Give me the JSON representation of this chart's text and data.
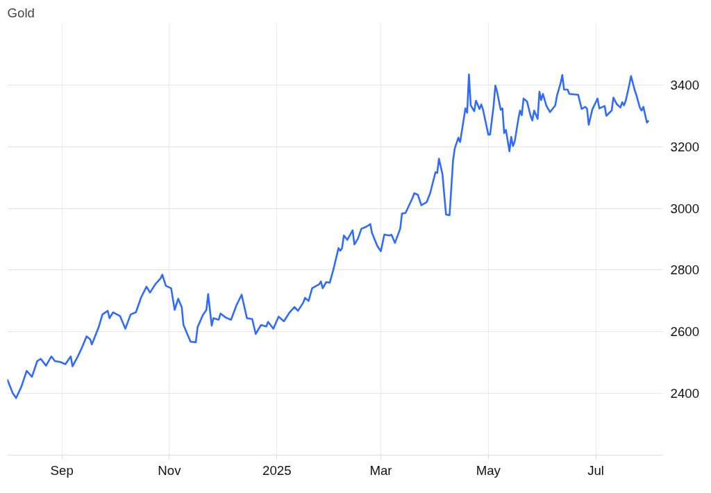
{
  "chart_data": {
    "type": "line",
    "title": "Gold",
    "x": [
      "2024-08-01",
      "2024-08-04",
      "2024-08-06",
      "2024-08-09",
      "2024-08-12",
      "2024-08-15",
      "2024-08-18",
      "2024-08-20",
      "2024-08-23",
      "2024-08-26",
      "2024-08-28",
      "2024-08-31",
      "2024-09-03",
      "2024-09-06",
      "2024-09-07",
      "2024-09-10",
      "2024-09-12",
      "2024-09-15",
      "2024-09-17",
      "2024-09-18",
      "2024-09-22",
      "2024-09-24",
      "2024-09-27",
      "2024-09-28",
      "2024-09-30",
      "2024-10-04",
      "2024-10-07",
      "2024-10-10",
      "2024-10-13",
      "2024-10-16",
      "2024-10-19",
      "2024-10-21",
      "2024-10-24",
      "2024-10-27",
      "2024-10-28",
      "2024-10-30",
      "2024-11-02",
      "2024-11-04",
      "2024-11-06",
      "2024-11-08",
      "2024-11-09",
      "2024-11-13",
      "2024-11-16",
      "2024-11-17",
      "2024-11-20",
      "2024-11-22",
      "2024-11-23",
      "2024-11-25",
      "2024-11-26",
      "2024-11-29",
      "2024-11-30",
      "2024-12-03",
      "2024-12-06",
      "2024-12-09",
      "2024-12-12",
      "2024-12-15",
      "2024-12-18",
      "2024-12-20",
      "2024-12-23",
      "2024-12-26",
      "2024-12-27",
      "2024-12-30",
      "2025-01-02",
      "2025-01-05",
      "2025-01-08",
      "2025-01-11",
      "2025-01-13",
      "2025-01-16",
      "2025-01-17",
      "2025-01-19",
      "2025-01-21",
      "2025-01-25",
      "2025-01-26",
      "2025-01-27",
      "2025-01-29",
      "2025-01-31",
      "2025-02-02",
      "2025-02-05",
      "2025-02-06",
      "2025-02-07",
      "2025-02-08",
      "2025-02-10",
      "2025-02-13",
      "2025-02-14",
      "2025-02-16",
      "2025-02-18",
      "2025-02-21",
      "2025-02-23",
      "2025-02-24",
      "2025-02-27",
      "2025-03-01",
      "2025-03-03",
      "2025-03-06",
      "2025-03-07",
      "2025-03-09",
      "2025-03-12",
      "2025-03-13",
      "2025-03-15",
      "2025-03-19",
      "2025-03-20",
      "2025-03-22",
      "2025-03-24",
      "2025-03-27",
      "2025-03-29",
      "2025-04-01",
      "2025-04-02",
      "2025-04-03",
      "2025-04-05",
      "2025-04-06",
      "2025-04-07",
      "2025-04-09",
      "2025-04-11",
      "2025-04-12",
      "2025-04-14",
      "2025-04-15",
      "2025-04-16",
      "2025-04-18",
      "2025-04-19",
      "2025-04-20",
      "2025-04-21",
      "2025-04-23",
      "2025-04-24",
      "2025-04-26",
      "2025-04-27",
      "2025-04-28",
      "2025-05-01",
      "2025-05-02",
      "2025-05-04",
      "2025-05-05",
      "2025-05-06",
      "2025-05-08",
      "2025-05-09",
      "2025-05-10",
      "2025-05-11",
      "2025-05-13",
      "2025-05-14",
      "2025-05-15",
      "2025-05-16",
      "2025-05-18",
      "2025-05-19",
      "2025-05-20",
      "2025-05-21",
      "2025-05-23",
      "2025-05-25",
      "2025-05-26",
      "2025-05-27",
      "2025-05-29",
      "2025-05-30",
      "2025-05-31",
      "2025-06-01",
      "2025-06-03",
      "2025-06-05",
      "2025-06-08",
      "2025-06-09",
      "2025-06-11",
      "2025-06-12",
      "2025-06-13",
      "2025-06-15",
      "2025-06-16",
      "2025-06-21",
      "2025-06-23",
      "2025-06-25",
      "2025-06-26",
      "2025-06-27",
      "2025-06-29",
      "2025-07-02",
      "2025-07-03",
      "2025-07-06",
      "2025-07-07",
      "2025-07-10",
      "2025-07-11",
      "2025-07-13",
      "2025-07-15",
      "2025-07-16",
      "2025-07-17",
      "2025-07-18",
      "2025-07-20",
      "2025-07-21",
      "2025-07-23",
      "2025-07-24",
      "2025-07-26",
      "2025-07-27",
      "2025-07-28",
      "2025-07-30",
      "2025-07-31"
    ],
    "series": [
      {
        "color": "#2f6bff",
        "values": [
          2446,
          2402,
          2385,
          2422,
          2473,
          2454,
          2505,
          2512,
          2490,
          2520,
          2505,
          2502,
          2495,
          2520,
          2488,
          2520,
          2544,
          2585,
          2576,
          2559,
          2617,
          2656,
          2668,
          2644,
          2663,
          2651,
          2610,
          2656,
          2663,
          2712,
          2746,
          2727,
          2754,
          2773,
          2785,
          2749,
          2741,
          2671,
          2707,
          2680,
          2622,
          2568,
          2566,
          2615,
          2654,
          2671,
          2722,
          2620,
          2644,
          2639,
          2659,
          2646,
          2639,
          2685,
          2720,
          2644,
          2641,
          2593,
          2622,
          2617,
          2632,
          2610,
          2649,
          2634,
          2661,
          2680,
          2668,
          2695,
          2710,
          2700,
          2741,
          2754,
          2763,
          2741,
          2761,
          2759,
          2800,
          2871,
          2863,
          2871,
          2912,
          2898,
          2929,
          2883,
          2902,
          2934,
          2941,
          2949,
          2920,
          2878,
          2861,
          2915,
          2912,
          2915,
          2888,
          2934,
          2983,
          2985,
          3034,
          3049,
          3044,
          3010,
          3020,
          3049,
          3117,
          3115,
          3161,
          3110,
          3044,
          2980,
          2978,
          3156,
          3195,
          3229,
          3215,
          3251,
          3324,
          3310,
          3434,
          3334,
          3315,
          3349,
          3322,
          3337,
          3320,
          3239,
          3239,
          3332,
          3398,
          3378,
          3320,
          3324,
          3244,
          3254,
          3185,
          3232,
          3202,
          3217,
          3288,
          3317,
          3302,
          3356,
          3346,
          3300,
          3285,
          3317,
          3290,
          3378,
          3351,
          3371,
          3332,
          3312,
          3334,
          3366,
          3405,
          3432,
          3385,
          3385,
          3371,
          3368,
          3322,
          3329,
          3324,
          3271,
          3320,
          3356,
          3324,
          3332,
          3300,
          3317,
          3359,
          3337,
          3327,
          3344,
          3334,
          3349,
          3400,
          3429,
          3385,
          3368,
          3327,
          3317,
          3329,
          3278,
          3285
        ]
      }
    ],
    "xlim": [
      "2024-08-01",
      "2025-08-08"
    ],
    "xticks": [
      {
        "value": "2024-09-01",
        "label": "Sep"
      },
      {
        "value": "2024-11-01",
        "label": "Nov"
      },
      {
        "value": "2025-01-01",
        "label": "2025"
      },
      {
        "value": "2025-03-01",
        "label": "Mar"
      },
      {
        "value": "2025-05-01",
        "label": "May"
      },
      {
        "value": "2025-07-01",
        "label": "Jul"
      }
    ],
    "ylim": [
      2200,
      3600
    ],
    "yticks": [
      2400,
      2600,
      2800,
      3000,
      3200,
      3400
    ],
    "grid": true
  }
}
